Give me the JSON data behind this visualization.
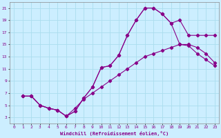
{
  "xlabel": "Windchill (Refroidissement éolien,°C)",
  "bg_color": "#cceeff",
  "line_color": "#880088",
  "grid_color": "#aaddee",
  "xlim": [
    -0.5,
    23.5
  ],
  "ylim": [
    2,
    22
  ],
  "yticks": [
    3,
    5,
    7,
    9,
    11,
    13,
    15,
    17,
    19,
    21
  ],
  "xticks": [
    0,
    1,
    2,
    3,
    4,
    5,
    6,
    7,
    8,
    9,
    10,
    11,
    12,
    13,
    14,
    15,
    16,
    17,
    18,
    19,
    20,
    21,
    22,
    23
  ],
  "curve1_x": [
    1,
    2,
    3,
    4,
    5,
    6,
    7,
    8,
    9,
    10,
    11,
    12,
    13,
    14,
    15,
    16,
    17,
    18,
    19,
    20,
    21,
    22,
    23
  ],
  "curve1_y": [
    6.5,
    6.5,
    5.0,
    4.5,
    4.2,
    3.2,
    4.0,
    6.2,
    8.0,
    11.2,
    11.5,
    13.2,
    16.5,
    19.0,
    21.0,
    21.0,
    20.0,
    18.5,
    19.0,
    16.5,
    16.5,
    16.5,
    16.5
  ],
  "curve2_x": [
    1,
    2,
    3,
    4,
    5,
    6,
    7,
    8,
    9,
    10,
    11,
    12,
    13,
    14,
    15,
    16,
    17,
    18,
    19,
    20,
    21,
    22,
    23
  ],
  "curve2_y": [
    6.5,
    6.5,
    5.0,
    4.5,
    4.2,
    3.2,
    4.0,
    6.2,
    8.0,
    11.2,
    11.5,
    13.2,
    16.5,
    19.0,
    21.0,
    21.0,
    20.0,
    18.5,
    15.0,
    14.8,
    13.5,
    12.5,
    11.5
  ],
  "curve3_x": [
    1,
    2,
    3,
    4,
    5,
    6,
    7,
    8,
    9,
    10,
    11,
    12,
    13,
    14,
    15,
    16,
    17,
    18,
    19,
    20,
    21,
    22,
    23
  ],
  "curve3_y": [
    6.5,
    6.5,
    5.0,
    4.5,
    4.2,
    3.2,
    4.5,
    6.0,
    7.0,
    8.0,
    9.0,
    10.0,
    11.0,
    12.0,
    13.0,
    13.5,
    14.0,
    14.5,
    15.0,
    15.0,
    14.5,
    13.5,
    12.0
  ]
}
